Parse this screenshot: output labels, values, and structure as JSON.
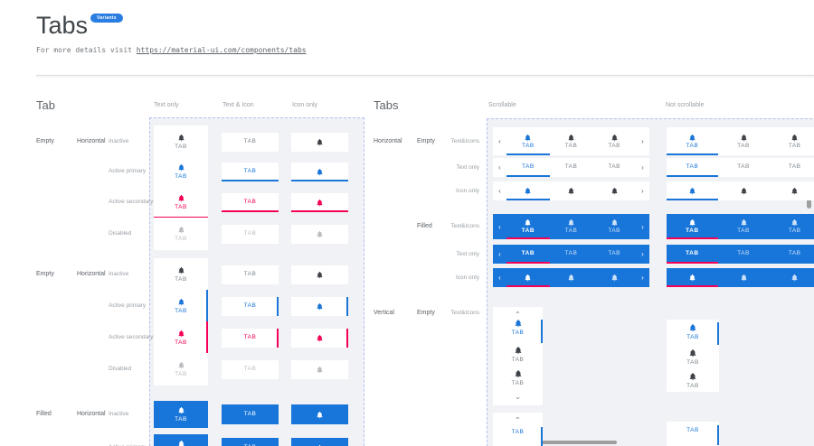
{
  "header": {
    "title": "Tabs",
    "badge": "Variants",
    "subtitle_prefix": "For more details visit ",
    "subtitle_link": "https://material-ui.com/components/tabs"
  },
  "labels": {
    "tab_label": "TAB"
  },
  "icons": {
    "tab_icon": "bell-icon",
    "chevron_left": "‹",
    "chevron_right": "›"
  },
  "colors": {
    "primary": "#1a75d8",
    "secondary": "#f50057",
    "badge_bg": "#2a7de1",
    "inactive_icon": "#3f4348",
    "inactive_text": "#7f868c",
    "disabled": "#bcbec2",
    "filled_bg": "#1876da",
    "filled_content": "#ffffff",
    "container_bg": "#f1f2f5",
    "dashed_border": "#b7bff0",
    "scrollbar": "#9e9e9e"
  },
  "tab_section": {
    "heading": "Tab",
    "column_headers": [
      "Text only",
      "Text & Icon",
      "Icon only"
    ],
    "groups": [
      {
        "fill": "Empty",
        "orientation": "Horizontal",
        "indicator_side": "bottom",
        "rows": [
          {
            "label": "Inactive",
            "state": "inactive"
          },
          {
            "label": "Active primary",
            "state": "primary"
          },
          {
            "label": "Active secondary",
            "state": "secondary"
          },
          {
            "label": "Disabled",
            "state": "disabled"
          }
        ]
      },
      {
        "fill": "Empty",
        "orientation": "Horizontal",
        "indicator_side": "right",
        "rows": [
          {
            "label": "Inactive",
            "state": "inactive"
          },
          {
            "label": "Active primary",
            "state": "primary"
          },
          {
            "label": "Active secondary",
            "state": "secondary"
          },
          {
            "label": "Disabled",
            "state": "disabled"
          }
        ]
      },
      {
        "fill": "Filled",
        "orientation": "Horizontal",
        "indicator_side": "bottom",
        "rows": [
          {
            "label": "Inactive",
            "state": "filled"
          },
          {
            "label": "Active primary",
            "state": "filled"
          }
        ]
      }
    ]
  },
  "tabs_section": {
    "heading": "Tabs",
    "column_headers": [
      "Scrollable",
      "Not scrollable"
    ],
    "groups": [
      {
        "orientation": "Horizontal",
        "fill": "Empty",
        "rows": [
          {
            "label": "Text&Icons",
            "variant": "texticon"
          },
          {
            "label": "Text only",
            "variant": "text"
          },
          {
            "label": "Icon only",
            "variant": "icon"
          }
        ]
      },
      {
        "orientation": "",
        "fill": "Filled",
        "rows": [
          {
            "label": "Text&Icons",
            "variant": "texticon"
          },
          {
            "label": "Text only",
            "variant": "text"
          },
          {
            "label": "Icon only",
            "variant": "icon"
          }
        ]
      },
      {
        "orientation": "Vertical",
        "fill": "Empty",
        "rows": [
          {
            "label": "Text&Icons",
            "variant": "texticon"
          }
        ]
      }
    ]
  }
}
